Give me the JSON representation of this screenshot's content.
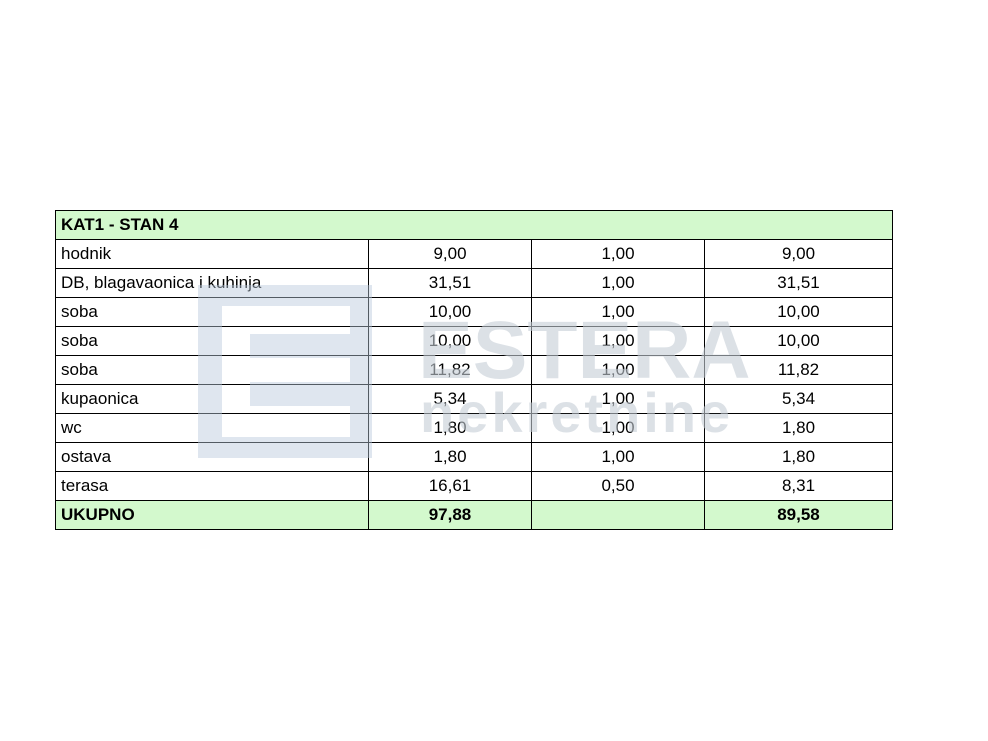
{
  "table": {
    "title": "KAT1 - STAN 4",
    "rows": [
      [
        "hodnik",
        "9,00",
        "1,00",
        "9,00"
      ],
      [
        "DB, blagavaonica i kuhinja",
        "31,51",
        "1,00",
        "31,51"
      ],
      [
        "soba",
        "10,00",
        "1,00",
        "10,00"
      ],
      [
        "soba",
        "10,00",
        "1,00",
        "10,00"
      ],
      [
        "soba",
        "11,82",
        "1,00",
        "11,82"
      ],
      [
        "kupaonica",
        "5,34",
        "1,00",
        "5,34"
      ],
      [
        "wc",
        "1,80",
        "1,00",
        "1,80"
      ],
      [
        "ostava",
        "1,80",
        "1,00",
        "1,80"
      ],
      [
        "terasa",
        "16,61",
        "0,50",
        "8,31"
      ]
    ],
    "total": {
      "label": "UKUPNO",
      "area": "97,88",
      "net": "89,58"
    }
  },
  "watermark": {
    "brand": "ESTERA",
    "sub": "nekretnine"
  }
}
